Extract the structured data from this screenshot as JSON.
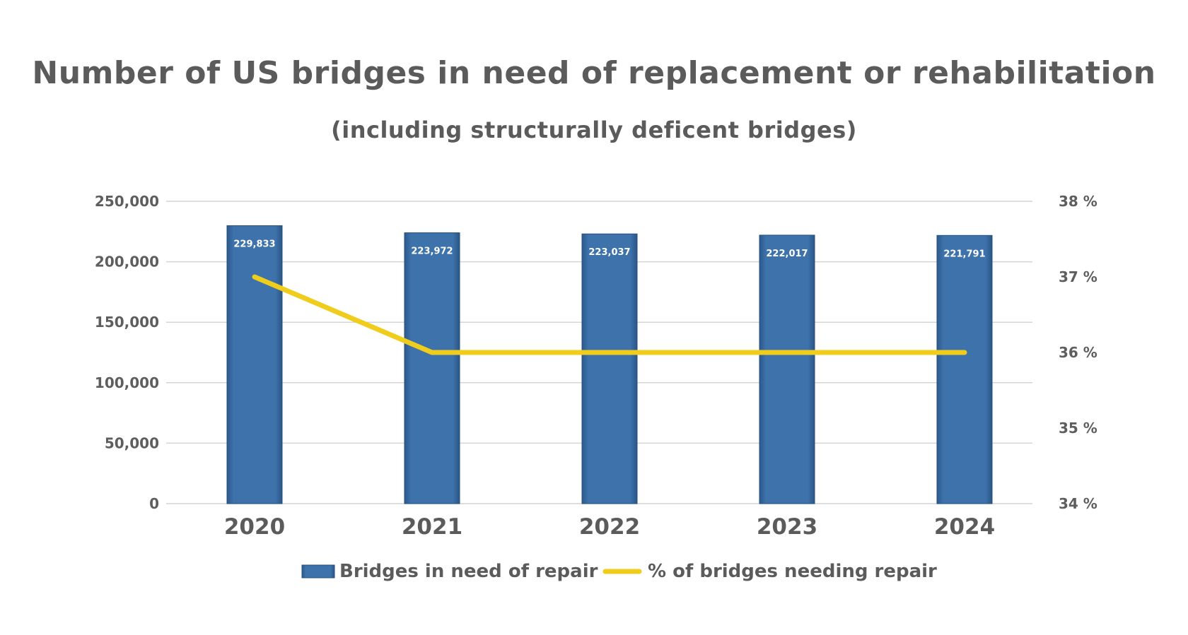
{
  "chart_data": {
    "type": "bar",
    "title": "Number of US bridges in need of replacement or rehabilitation",
    "subtitle": "(including structurally deficent bridges)",
    "categories": [
      "2020",
      "2021",
      "2022",
      "2023",
      "2024"
    ],
    "series": [
      {
        "name": "Bridges in need of repair",
        "type": "bar",
        "axis": "left",
        "values": [
          229833,
          223972,
          223037,
          222017,
          221791
        ],
        "labels": [
          "229,833",
          "223,972",
          "223,037",
          "222,017",
          "221,791"
        ],
        "color": "#3a6ea5"
      },
      {
        "name": "% of bridges needing repair",
        "type": "line",
        "axis": "right",
        "values": [
          37,
          36,
          36,
          36,
          36
        ],
        "color": "#f0cc1c"
      }
    ],
    "ylim_left": [
      0,
      250000
    ],
    "yticks_left": [
      "0",
      "50,000",
      "100,000",
      "150,000",
      "200,000",
      "250,000"
    ],
    "ylim_right": [
      34,
      38
    ],
    "yticks_right": [
      "34 %",
      "35 %",
      "36 %",
      "37 %",
      "38 %"
    ],
    "grid": true,
    "legend_position": "bottom"
  }
}
